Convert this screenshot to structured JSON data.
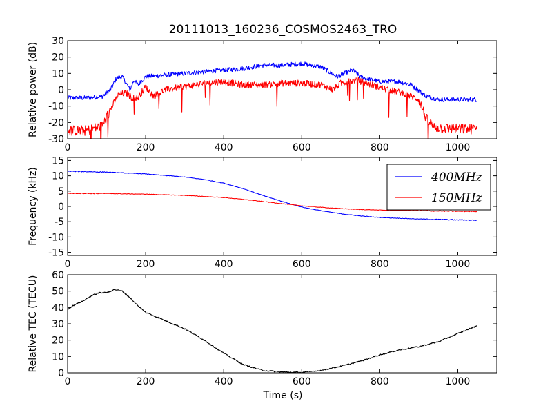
{
  "figure": {
    "title": "20111013_160236_COSMOS2463_TRO",
    "xlabel": "Time (s)"
  },
  "chart_data": [
    {
      "type": "line",
      "ylabel": "Relative power (dB)",
      "xlim": [
        0,
        1100
      ],
      "ylim": [
        -30,
        30
      ],
      "xticks": [
        0,
        200,
        400,
        600,
        800,
        1000
      ],
      "yticks": [
        -30,
        -20,
        -10,
        0,
        10,
        20,
        30
      ],
      "grid": false,
      "series": [
        {
          "color": "#0000ff",
          "x": [
            0,
            50,
            90,
            110,
            125,
            140,
            150,
            160,
            170,
            180,
            200,
            250,
            300,
            350,
            400,
            450,
            500,
            550,
            600,
            650,
            690,
            710,
            730,
            750,
            780,
            800,
            850,
            880,
            920,
            950,
            1000,
            1050
          ],
          "y": [
            -5,
            -5,
            -4,
            0,
            7,
            8,
            4,
            0,
            6,
            3,
            8,
            9,
            10,
            11,
            12,
            13,
            15,
            15,
            16,
            14,
            8,
            10,
            12,
            8,
            6,
            5,
            5,
            3,
            -4,
            -6,
            -6,
            -6
          ]
        },
        {
          "color": "#ff0000",
          "x": [
            0,
            50,
            90,
            110,
            130,
            150,
            165,
            180,
            200,
            220,
            250,
            300,
            350,
            400,
            450,
            500,
            550,
            600,
            650,
            680,
            700,
            740,
            780,
            820,
            860,
            900,
            920,
            940,
            1000,
            1050
          ],
          "y": [
            -25,
            -25,
            -22,
            -12,
            -3,
            -2,
            -5,
            -5,
            2,
            -4,
            0,
            2,
            4,
            5,
            3,
            3,
            4,
            4,
            3,
            0,
            4,
            6,
            3,
            0,
            -2,
            -6,
            -18,
            -23,
            -24,
            -24
          ]
        }
      ]
    },
    {
      "type": "line",
      "ylabel": "Frequency (kHz)",
      "xlim": [
        0,
        1100
      ],
      "ylim": [
        -16,
        16
      ],
      "xticks": [
        0,
        200,
        400,
        600,
        800,
        1000
      ],
      "yticks": [
        -15,
        -10,
        -5,
        0,
        5,
        10,
        15
      ],
      "grid": false,
      "legend": "top-right",
      "series": [
        {
          "name": "400MHz",
          "color": "#0000ff",
          "x": [
            0,
            100,
            200,
            300,
            350,
            400,
            450,
            500,
            550,
            600,
            650,
            700,
            750,
            800,
            900,
            1000,
            1050
          ],
          "y": [
            11.5,
            11.2,
            10.6,
            9.6,
            8.8,
            7.6,
            5.8,
            3.6,
            1.6,
            -0.2,
            -1.4,
            -2.4,
            -3.1,
            -3.6,
            -4.1,
            -4.4,
            -4.5
          ]
        },
        {
          "name": "150MHz",
          "color": "#ff0000",
          "x": [
            0,
            100,
            200,
            300,
            400,
            450,
            500,
            550,
            600,
            650,
            700,
            750,
            800,
            900,
            1000,
            1050
          ],
          "y": [
            4.3,
            4.2,
            4.0,
            3.6,
            2.9,
            2.3,
            1.6,
            0.9,
            0.2,
            -0.3,
            -0.7,
            -1.0,
            -1.2,
            -1.4,
            -1.6,
            -1.6
          ]
        }
      ]
    },
    {
      "type": "line",
      "ylabel": "Relative TEC (TECU)",
      "xlim": [
        0,
        1100
      ],
      "ylim": [
        0,
        60
      ],
      "xticks": [
        0,
        200,
        400,
        600,
        800,
        1000
      ],
      "yticks": [
        0,
        10,
        20,
        30,
        40,
        50,
        60
      ],
      "grid": false,
      "series": [
        {
          "color": "#000000",
          "x": [
            0,
            20,
            40,
            60,
            80,
            100,
            120,
            140,
            160,
            180,
            200,
            220,
            250,
            300,
            350,
            400,
            450,
            500,
            550,
            600,
            650,
            700,
            750,
            800,
            850,
            900,
            950,
            1000,
            1050
          ],
          "y": [
            39,
            42,
            44,
            47,
            49,
            49,
            51,
            50,
            46,
            41,
            37,
            35,
            32,
            27,
            20,
            12,
            5,
            1.5,
            0.5,
            0.2,
            1.5,
            4,
            7,
            11,
            14,
            16,
            19,
            24,
            29
          ]
        }
      ]
    }
  ]
}
